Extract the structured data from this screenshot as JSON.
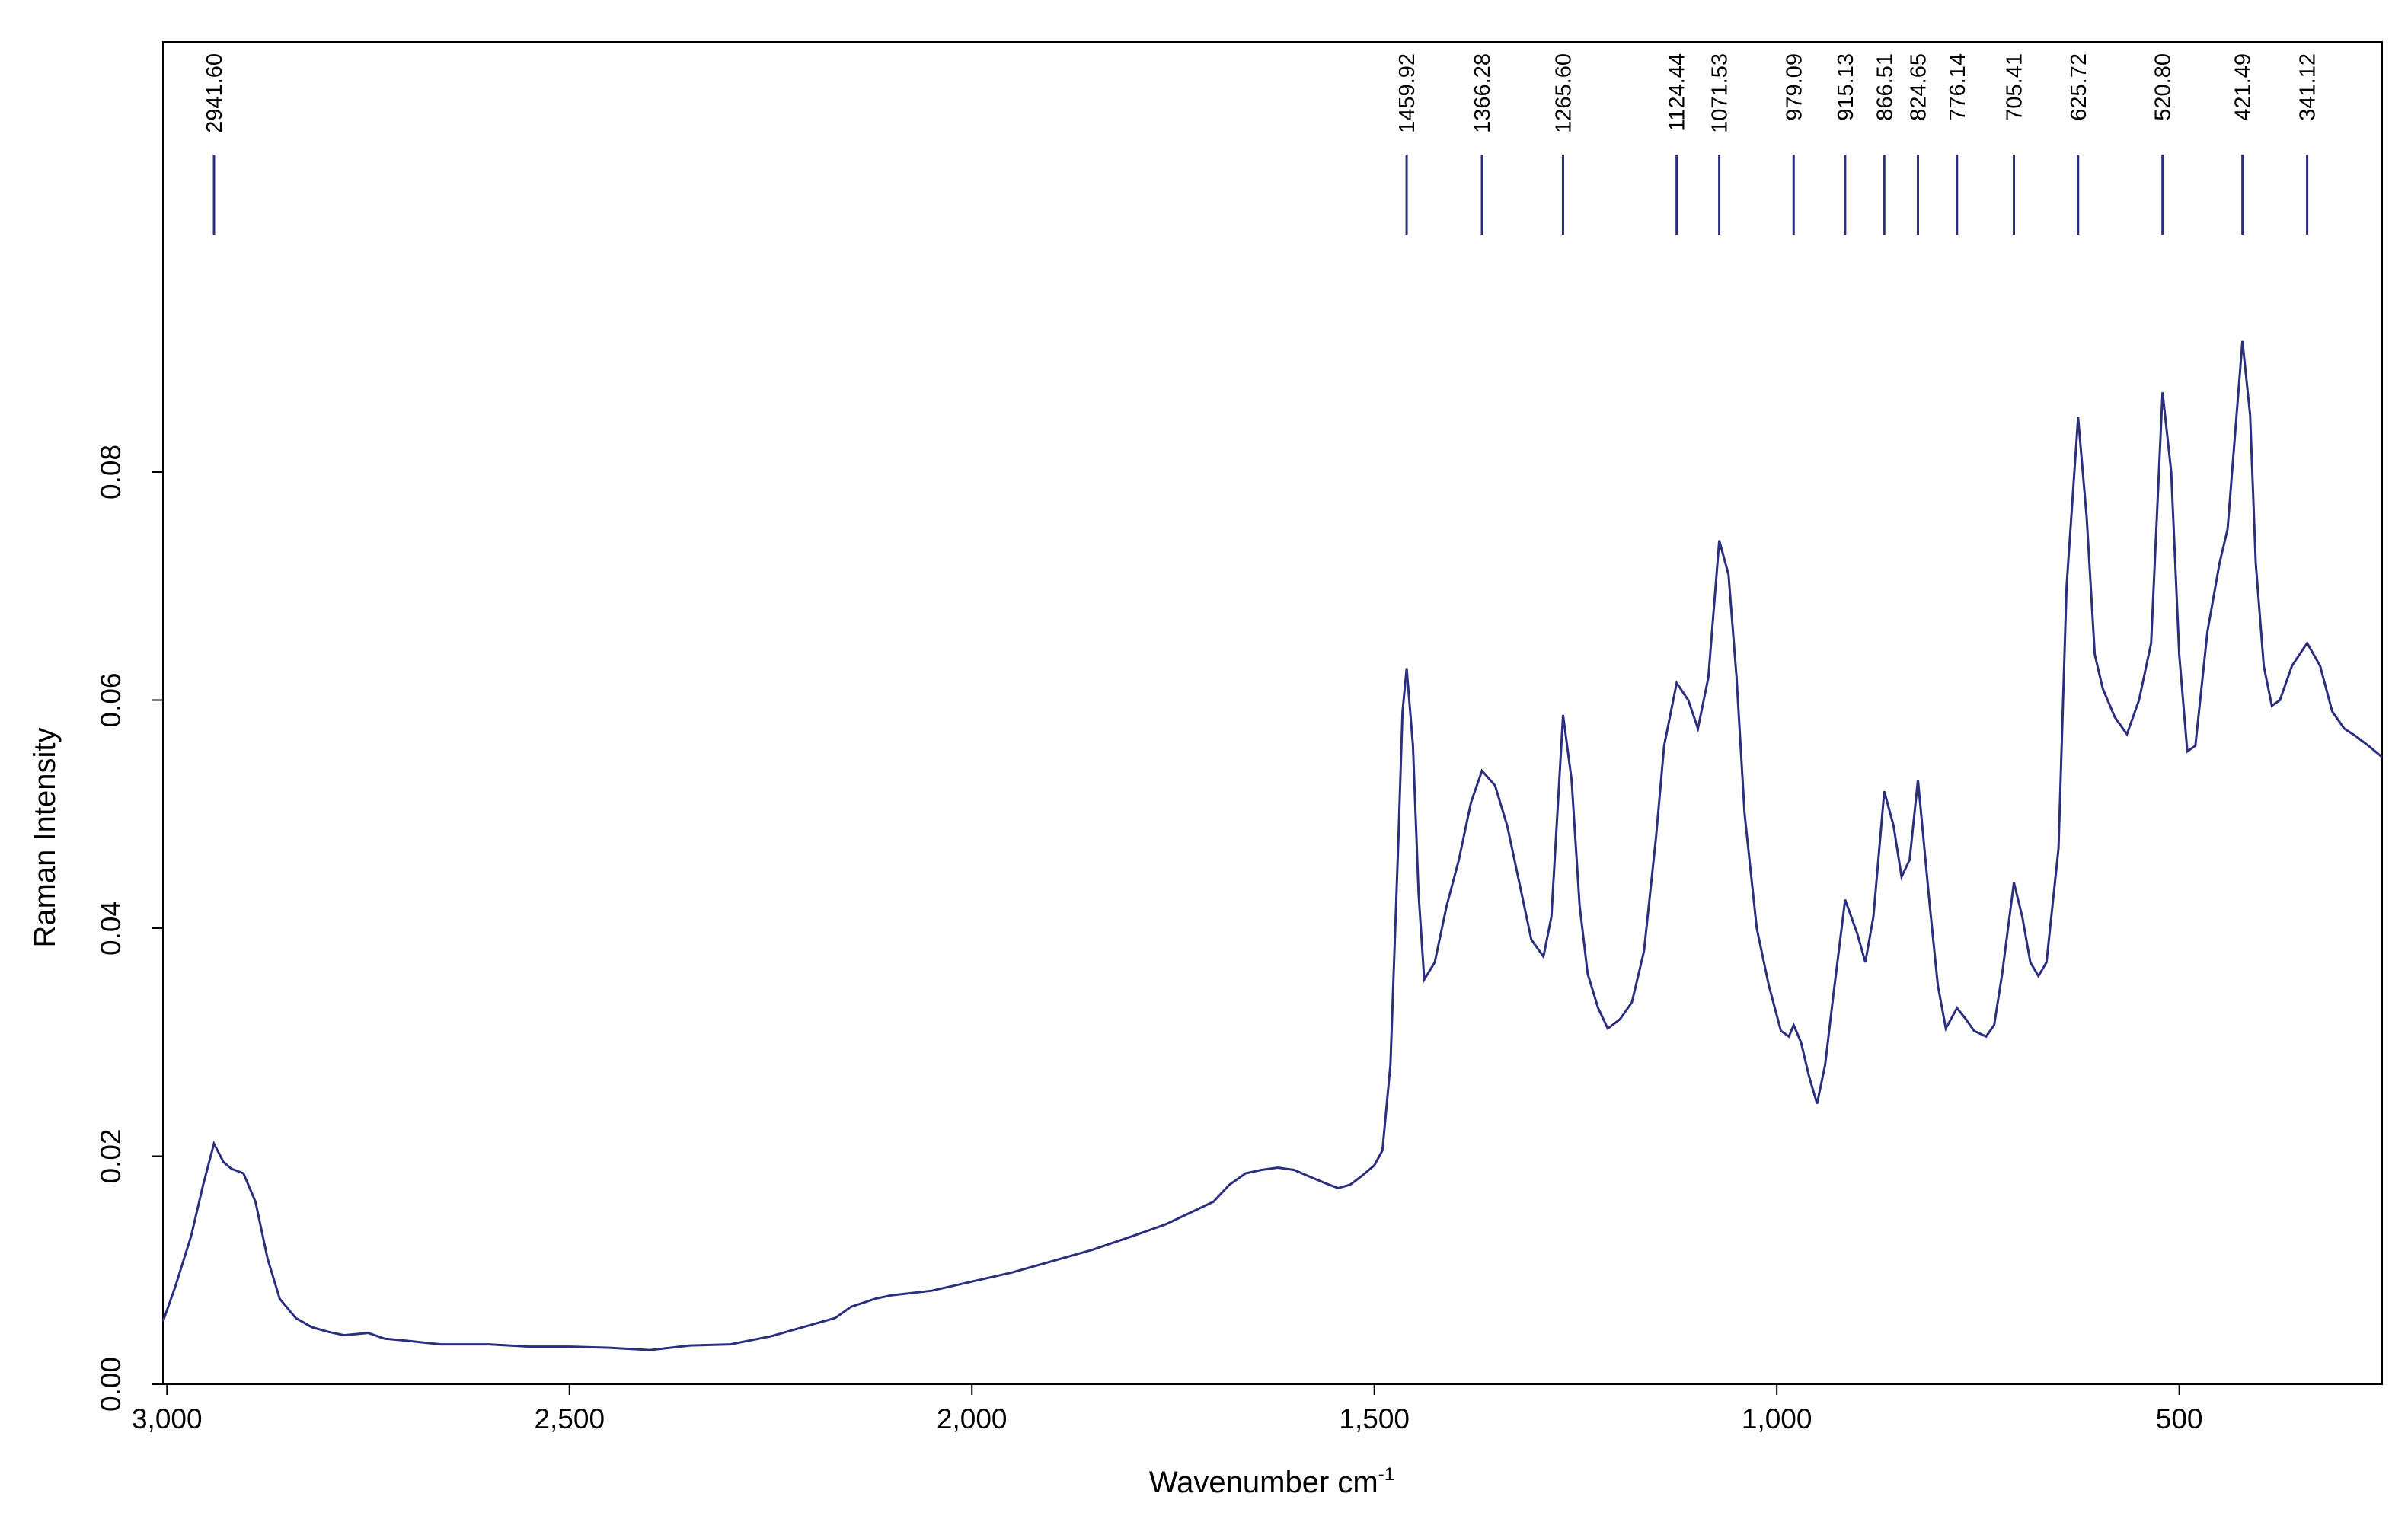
{
  "chart_data": {
    "type": "line",
    "title": "",
    "xlabel": "Wavenumber cm",
    "xlabel_superscript": "-1",
    "ylabel": "Raman Intensity",
    "xlim": [
      3005,
      248
    ],
    "ylim": [
      0,
      0.1
    ],
    "x_reversed": true,
    "x_ticks": [
      3000,
      2500,
      2000,
      1500,
      1000,
      500
    ],
    "x_tick_labels": [
      "3,000",
      "2,500",
      "2,000",
      "1,500",
      "1,000",
      "500"
    ],
    "y_ticks": [
      0,
      0.02,
      0.04,
      0.06,
      0.08
    ],
    "y_tick_labels": [
      "0.00",
      "0.02",
      "0.04",
      "0.06",
      "0.08"
    ],
    "grid": false,
    "legend": "none",
    "line_color": "#2b2f7e",
    "peaks": [
      {
        "x": 2941.6,
        "label": "2941.60"
      },
      {
        "x": 1459.92,
        "label": "1459.92"
      },
      {
        "x": 1366.28,
        "label": "1366.28"
      },
      {
        "x": 1265.6,
        "label": "1265.60"
      },
      {
        "x": 1124.44,
        "label": "1124.44"
      },
      {
        "x": 1071.53,
        "label": "1071.53"
      },
      {
        "x": 979.09,
        "label": "979.09"
      },
      {
        "x": 915.13,
        "label": "915.13"
      },
      {
        "x": 866.51,
        "label": "866.51"
      },
      {
        "x": 824.65,
        "label": "824.65"
      },
      {
        "x": 776.14,
        "label": "776.14"
      },
      {
        "x": 705.41,
        "label": "705.41"
      },
      {
        "x": 625.72,
        "label": "625.72"
      },
      {
        "x": 520.8,
        "label": "520.80"
      },
      {
        "x": 421.49,
        "label": "421.49"
      },
      {
        "x": 341.12,
        "label": "341.12"
      }
    ],
    "series": [
      {
        "x": [
          3005,
          2990,
          2970,
          2955,
          2941.6,
          2930,
          2920,
          2905,
          2890,
          2875,
          2860,
          2840,
          2820,
          2800,
          2780,
          2750,
          2730,
          2700,
          2660,
          2600,
          2550,
          2500,
          2450,
          2400,
          2350,
          2300,
          2250,
          2200,
          2170,
          2150,
          2120,
          2100,
          2050,
          2000,
          1950,
          1900,
          1850,
          1800,
          1760,
          1730,
          1700,
          1680,
          1660,
          1640,
          1620,
          1600,
          1580,
          1560,
          1545,
          1530,
          1515,
          1500,
          1490,
          1480,
          1470,
          1465,
          1459.92,
          1452,
          1445,
          1438,
          1425,
          1410,
          1395,
          1380,
          1366.28,
          1350,
          1335,
          1320,
          1305,
          1290,
          1280,
          1265.6,
          1255,
          1245,
          1235,
          1222,
          1210,
          1195,
          1180,
          1165,
          1150,
          1140,
          1124.44,
          1110,
          1098,
          1085,
          1071.53,
          1060,
          1050,
          1040,
          1025,
          1010,
          995,
          985,
          979.09,
          970,
          960,
          950,
          940,
          930,
          915.13,
          900,
          890,
          880,
          866.51,
          855,
          845,
          835,
          824.65,
          810,
          800,
          790,
          776.14,
          765,
          755,
          740,
          730,
          720,
          705.41,
          695,
          685,
          675,
          665,
          650,
          640,
          625.72,
          615,
          605,
          595,
          580,
          565,
          550,
          535,
          520.8,
          510,
          500,
          490,
          480,
          465,
          450,
          440,
          421.49,
          412,
          405,
          395,
          385,
          375,
          360,
          341.12,
          325,
          310,
          295,
          280,
          265,
          248
        ],
        "y": [
          0.0055,
          0.0085,
          0.013,
          0.0175,
          0.0211,
          0.0195,
          0.0189,
          0.0185,
          0.016,
          0.011,
          0.0075,
          0.0058,
          0.005,
          0.0046,
          0.0043,
          0.0045,
          0.004,
          0.0038,
          0.0035,
          0.0035,
          0.0033,
          0.0033,
          0.0032,
          0.003,
          0.0034,
          0.0035,
          0.0042,
          0.0052,
          0.0058,
          0.0068,
          0.0075,
          0.0078,
          0.0082,
          0.009,
          0.0098,
          0.0108,
          0.0118,
          0.013,
          0.014,
          0.015,
          0.016,
          0.0175,
          0.0185,
          0.0188,
          0.019,
          0.0188,
          0.0182,
          0.0176,
          0.0172,
          0.0175,
          0.0183,
          0.0192,
          0.0205,
          0.028,
          0.048,
          0.059,
          0.0628,
          0.056,
          0.043,
          0.0355,
          0.037,
          0.042,
          0.046,
          0.051,
          0.0538,
          0.0525,
          0.049,
          0.044,
          0.039,
          0.0375,
          0.041,
          0.0587,
          0.053,
          0.042,
          0.036,
          0.033,
          0.0312,
          0.032,
          0.0335,
          0.038,
          0.048,
          0.056,
          0.0615,
          0.06,
          0.0575,
          0.062,
          0.074,
          0.071,
          0.062,
          0.05,
          0.04,
          0.035,
          0.031,
          0.0305,
          0.0315,
          0.03,
          0.027,
          0.0246,
          0.028,
          0.034,
          0.0425,
          0.0395,
          0.037,
          0.041,
          0.052,
          0.049,
          0.0445,
          0.046,
          0.053,
          0.042,
          0.035,
          0.0312,
          0.033,
          0.032,
          0.031,
          0.0305,
          0.0315,
          0.036,
          0.044,
          0.041,
          0.037,
          0.0358,
          0.037,
          0.047,
          0.07,
          0.0848,
          0.076,
          0.064,
          0.061,
          0.0585,
          0.057,
          0.06,
          0.065,
          0.087,
          0.08,
          0.064,
          0.0555,
          0.056,
          0.066,
          0.072,
          0.075,
          0.0915,
          0.085,
          0.072,
          0.063,
          0.0595,
          0.06,
          0.063,
          0.065,
          0.063,
          0.059,
          0.0575,
          0.0568,
          0.056,
          0.055
        ]
      }
    ]
  }
}
